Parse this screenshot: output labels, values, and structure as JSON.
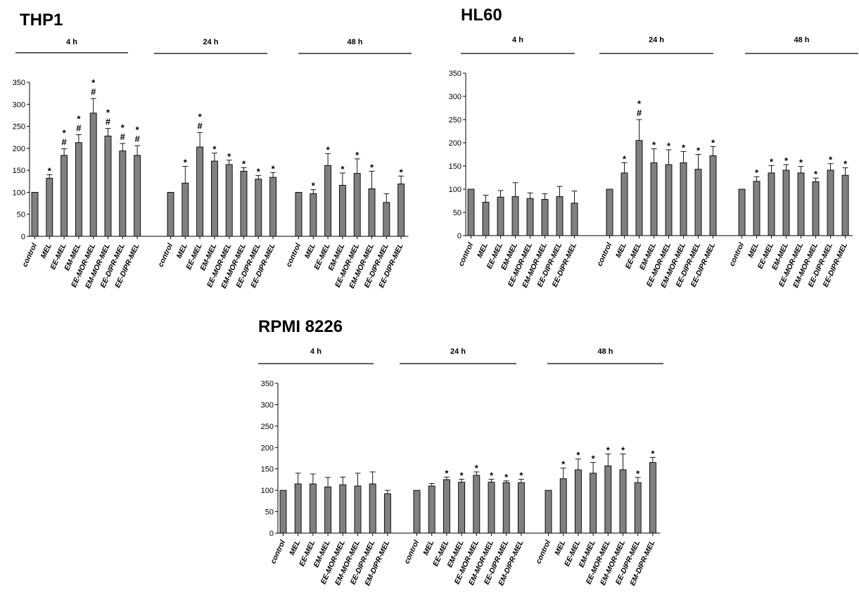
{
  "chart_data": [
    {
      "type": "bar",
      "title": "THP1",
      "ylim": [
        0,
        350
      ],
      "yticks": [
        0,
        50,
        100,
        150,
        200,
        250,
        300,
        350
      ],
      "categories": [
        "control",
        "MEL",
        "EE-MEL",
        "EM-MEL",
        "EE-MOR-MEL",
        "EM-MOR-MEL",
        "EE-DIPR-MEL",
        "EE-DIPR-MEL"
      ],
      "groups": [
        {
          "label": "4 h",
          "values": [
            100,
            132,
            184,
            213,
            280,
            228,
            194,
            184
          ],
          "errors": [
            0,
            8,
            15,
            18,
            33,
            17,
            17,
            22
          ],
          "marks": [
            "",
            "*",
            "*#",
            "*#",
            "*#",
            "*#",
            "*#",
            "*#"
          ]
        },
        {
          "label": "24 h",
          "values": [
            100,
            121,
            203,
            171,
            163,
            148,
            130,
            134
          ],
          "errors": [
            0,
            38,
            33,
            18,
            10,
            8,
            8,
            11
          ],
          "marks": [
            "",
            "*",
            "*#",
            "*",
            "*",
            "*",
            "*",
            "*"
          ]
        },
        {
          "label": "48 h",
          "values": [
            100,
            97,
            161,
            116,
            143,
            108,
            77,
            119
          ],
          "errors": [
            0,
            9,
            27,
            28,
            33,
            40,
            20,
            18
          ],
          "marks": [
            "",
            "*",
            "*",
            "*",
            "*",
            "*",
            "",
            "*"
          ]
        }
      ]
    },
    {
      "type": "bar",
      "title": "HL60",
      "ylim": [
        0,
        350
      ],
      "yticks": [
        0,
        50,
        100,
        150,
        200,
        250,
        300,
        350
      ],
      "categories": [
        "control",
        "MEL",
        "EE-MEL",
        "EM-MEL",
        "EE-MOR-MEL",
        "EM-MOR-MEL",
        "EE-DIPR-MEL",
        "EE-DIPR-MEL"
      ],
      "groups": [
        {
          "label": "4 h",
          "values": [
            100,
            72,
            83,
            84,
            80,
            78,
            84,
            70
          ],
          "errors": [
            0,
            15,
            14,
            30,
            12,
            12,
            22,
            26
          ],
          "marks": [
            "",
            "",
            "",
            "",
            "",
            "",
            "",
            ""
          ]
        },
        {
          "label": "24 h",
          "values": [
            100,
            135,
            205,
            157,
            153,
            157,
            143,
            172
          ],
          "errors": [
            0,
            22,
            45,
            30,
            32,
            24,
            32,
            20
          ],
          "marks": [
            "",
            "*",
            "*#",
            "*",
            "*",
            "*",
            "*",
            "*"
          ]
        },
        {
          "label": "48 h",
          "values": [
            100,
            117,
            135,
            141,
            135,
            116,
            141,
            130
          ],
          "errors": [
            0,
            10,
            16,
            12,
            14,
            8,
            14,
            16
          ],
          "marks": [
            "",
            "*",
            "*",
            "*",
            "*",
            "*",
            "*",
            "*"
          ]
        }
      ]
    },
    {
      "type": "bar",
      "title": "RPMI 8226",
      "ylim": [
        0,
        350
      ],
      "yticks": [
        0,
        50,
        100,
        150,
        200,
        250,
        300,
        350
      ],
      "categories": [
        "control",
        "MEL",
        "EE-MEL",
        "EM-MEL",
        "EE-MOR-MEL",
        "EM-MOR-MEL",
        "EE-DIPR-MEL",
        "EM-DIPR-MEL"
      ],
      "groups": [
        {
          "label": "4 h",
          "values": [
            100,
            115,
            115,
            108,
            113,
            110,
            115,
            92
          ],
          "errors": [
            0,
            25,
            23,
            22,
            18,
            30,
            28,
            8
          ],
          "marks": [
            "",
            "",
            "",
            "",
            "",
            "",
            "",
            ""
          ]
        },
        {
          "label": "24 h",
          "values": [
            100,
            110,
            125,
            119,
            135,
            119,
            118,
            118
          ],
          "errors": [
            0,
            6,
            6,
            7,
            8,
            7,
            4,
            8
          ],
          "marks": [
            "",
            "",
            "*",
            "*",
            "*",
            "*",
            "*",
            "*"
          ]
        },
        {
          "label": "48 h",
          "values": [
            100,
            127,
            148,
            140,
            157,
            148,
            118,
            165
          ],
          "errors": [
            0,
            25,
            25,
            25,
            28,
            37,
            12,
            12
          ],
          "marks": [
            "",
            "*",
            "*",
            "*",
            "*",
            "*",
            "*",
            "*"
          ]
        }
      ]
    }
  ]
}
